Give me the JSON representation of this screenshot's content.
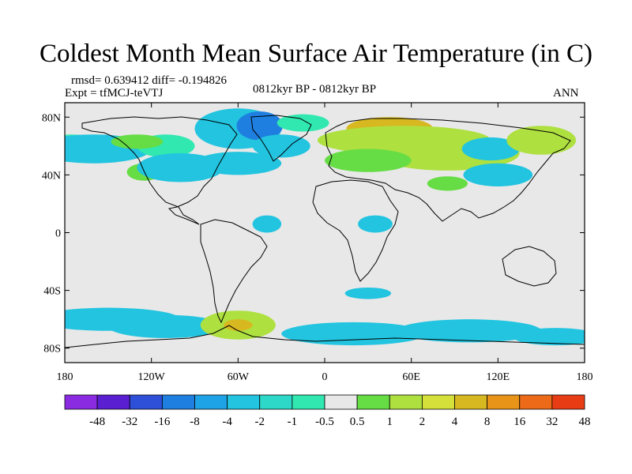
{
  "title": "Coldest Month Mean Surface Air Temperature (in C)",
  "stats_line": "rmsd= 0.639412 diff= -0.194826",
  "experiment_line": "Expt = tfMCJ-teVTJ",
  "period_line": "0812kyr BP - 0812kyr BP",
  "season": "ANN",
  "map": {
    "projection": "cylindrical equidistant",
    "lon_range": [
      -180,
      180
    ],
    "lat_range": [
      -90,
      90
    ],
    "background_color": "#e8e8e8",
    "lat_ticks": [
      {
        "value": 80,
        "label": "80N"
      },
      {
        "value": 40,
        "label": "40N"
      },
      {
        "value": 0,
        "label": "0"
      },
      {
        "value": -40,
        "label": "40S"
      },
      {
        "value": -80,
        "label": "80S"
      }
    ],
    "lon_ticks": [
      {
        "value": -180,
        "label": "180"
      },
      {
        "value": -120,
        "label": "120W"
      },
      {
        "value": -60,
        "label": "60W"
      },
      {
        "value": 0,
        "label": "0"
      },
      {
        "value": 60,
        "label": "60E"
      },
      {
        "value": 120,
        "label": "120E"
      },
      {
        "value": 180,
        "label": "180"
      }
    ]
  },
  "colorbar": {
    "colors": [
      "#8a2be2",
      "#5a1fd0",
      "#2e4fd8",
      "#1e7fe0",
      "#1ea4e6",
      "#22c4e0",
      "#2ed8c8",
      "#30e8b0",
      "#e8e8e8",
      "#66dd44",
      "#aee040",
      "#d6e03a",
      "#d8b820",
      "#e89418",
      "#ec6a18",
      "#e83c14"
    ],
    "labels": [
      "-48",
      "-32",
      "-16",
      "-8",
      "-4",
      "-2",
      "-1",
      "-0.5",
      "0.5",
      "1",
      "2",
      "4",
      "8",
      "16",
      "32",
      "48"
    ]
  },
  "anomaly_regions": [
    {
      "class": "cool-weak",
      "lon": -175,
      "lat": 62,
      "w": 18,
      "h": 6
    },
    {
      "class": "cool",
      "lon": -160,
      "lat": 58,
      "w": 40,
      "h": 10
    },
    {
      "class": "cool-weak",
      "lon": -110,
      "lat": 60,
      "w": 20,
      "h": 8
    },
    {
      "class": "warm-weak",
      "lon": -130,
      "lat": 63,
      "w": 18,
      "h": 5
    },
    {
      "class": "warm-weak",
      "lon": -125,
      "lat": 42,
      "w": 12,
      "h": 6
    },
    {
      "class": "cool",
      "lon": -100,
      "lat": 45,
      "w": 30,
      "h": 10
    },
    {
      "class": "cool",
      "lon": -60,
      "lat": 72,
      "w": 30,
      "h": 14
    },
    {
      "class": "cool-strong",
      "lon": -45,
      "lat": 74,
      "w": 16,
      "h": 10
    },
    {
      "class": "cool",
      "lon": -30,
      "lat": 60,
      "w": 20,
      "h": 8
    },
    {
      "class": "cool",
      "lon": -60,
      "lat": 48,
      "w": 30,
      "h": 8
    },
    {
      "class": "cool-weak",
      "lon": -15,
      "lat": 76,
      "w": 18,
      "h": 6
    },
    {
      "class": "warm-strong",
      "lon": 45,
      "lat": 72,
      "w": 30,
      "h": 8
    },
    {
      "class": "warm",
      "lon": 55,
      "lat": 64,
      "w": 60,
      "h": 10
    },
    {
      "class": "warm",
      "lon": 85,
      "lat": 55,
      "w": 50,
      "h": 12
    },
    {
      "class": "warm-weak",
      "lon": 30,
      "lat": 50,
      "w": 30,
      "h": 8
    },
    {
      "class": "cool",
      "lon": 115,
      "lat": 58,
      "w": 20,
      "h": 8
    },
    {
      "class": "warm",
      "lon": 150,
      "lat": 64,
      "w": 24,
      "h": 10
    },
    {
      "class": "cool",
      "lon": 120,
      "lat": 40,
      "w": 24,
      "h": 8
    },
    {
      "class": "warm-weak",
      "lon": 85,
      "lat": 34,
      "w": 14,
      "h": 5
    },
    {
      "class": "cool",
      "lon": -40,
      "lat": 6,
      "w": 10,
      "h": 6
    },
    {
      "class": "cool",
      "lon": 35,
      "lat": 6,
      "w": 12,
      "h": 6
    },
    {
      "class": "cool",
      "lon": -150,
      "lat": -60,
      "w": 50,
      "h": 8
    },
    {
      "class": "cool",
      "lon": -110,
      "lat": -65,
      "w": 40,
      "h": 8
    },
    {
      "class": "warm",
      "lon": -60,
      "lat": -64,
      "w": 26,
      "h": 10
    },
    {
      "class": "warm-strong",
      "lon": -60,
      "lat": -64,
      "w": 10,
      "h": 4
    },
    {
      "class": "cool",
      "lon": 20,
      "lat": -70,
      "w": 50,
      "h": 8
    },
    {
      "class": "cool",
      "lon": 100,
      "lat": -68,
      "w": 50,
      "h": 8
    },
    {
      "class": "cool",
      "lon": 160,
      "lat": -72,
      "w": 30,
      "h": 6
    },
    {
      "class": "cool",
      "lon": 30,
      "lat": -42,
      "w": 16,
      "h": 4
    }
  ],
  "region_colors": {
    "cool-strong": "#1e7fe0",
    "cool": "#22c4e0",
    "cool-weak": "#30e8b0",
    "warm-weak": "#66dd44",
    "warm": "#aee040",
    "warm-strong": "#d8b820"
  }
}
